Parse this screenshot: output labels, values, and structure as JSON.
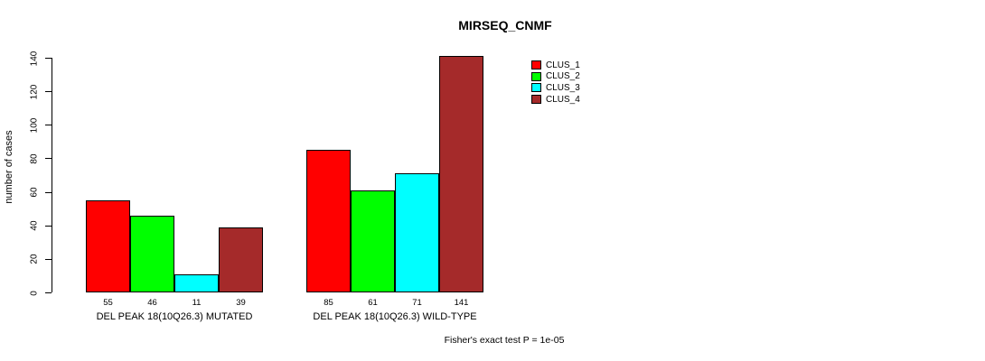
{
  "page": {
    "background_color": "#FFFFFF",
    "text_color": "#000000"
  },
  "chart_data": {
    "type": "bar",
    "title": "MIRSEQ_CNMF",
    "xlabel": "",
    "ylabel": "number of cases",
    "categories": [
      "DEL PEAK 18(10Q26.3) MUTATED",
      "DEL PEAK 18(10Q26.3) WILD-TYPE"
    ],
    "series": [
      {
        "name": "CLUS_1",
        "color": "#FF0000",
        "values": [
          55,
          85
        ]
      },
      {
        "name": "CLUS_2",
        "color": "#00FF00",
        "values": [
          46,
          61
        ]
      },
      {
        "name": "CLUS_3",
        "color": "#00FFFF",
        "values": [
          11,
          71
        ]
      },
      {
        "name": "CLUS_4",
        "color": "#A52A2A",
        "values": [
          39,
          141
        ]
      }
    ],
    "ylim": [
      0,
      140
    ],
    "yticks": [
      0,
      20,
      40,
      60,
      80,
      100,
      120,
      140
    ],
    "grid": false,
    "legend_position": "top-right",
    "bar_border_color": "#000000",
    "annotation": "Fisher's exact test P = 1e-05"
  }
}
